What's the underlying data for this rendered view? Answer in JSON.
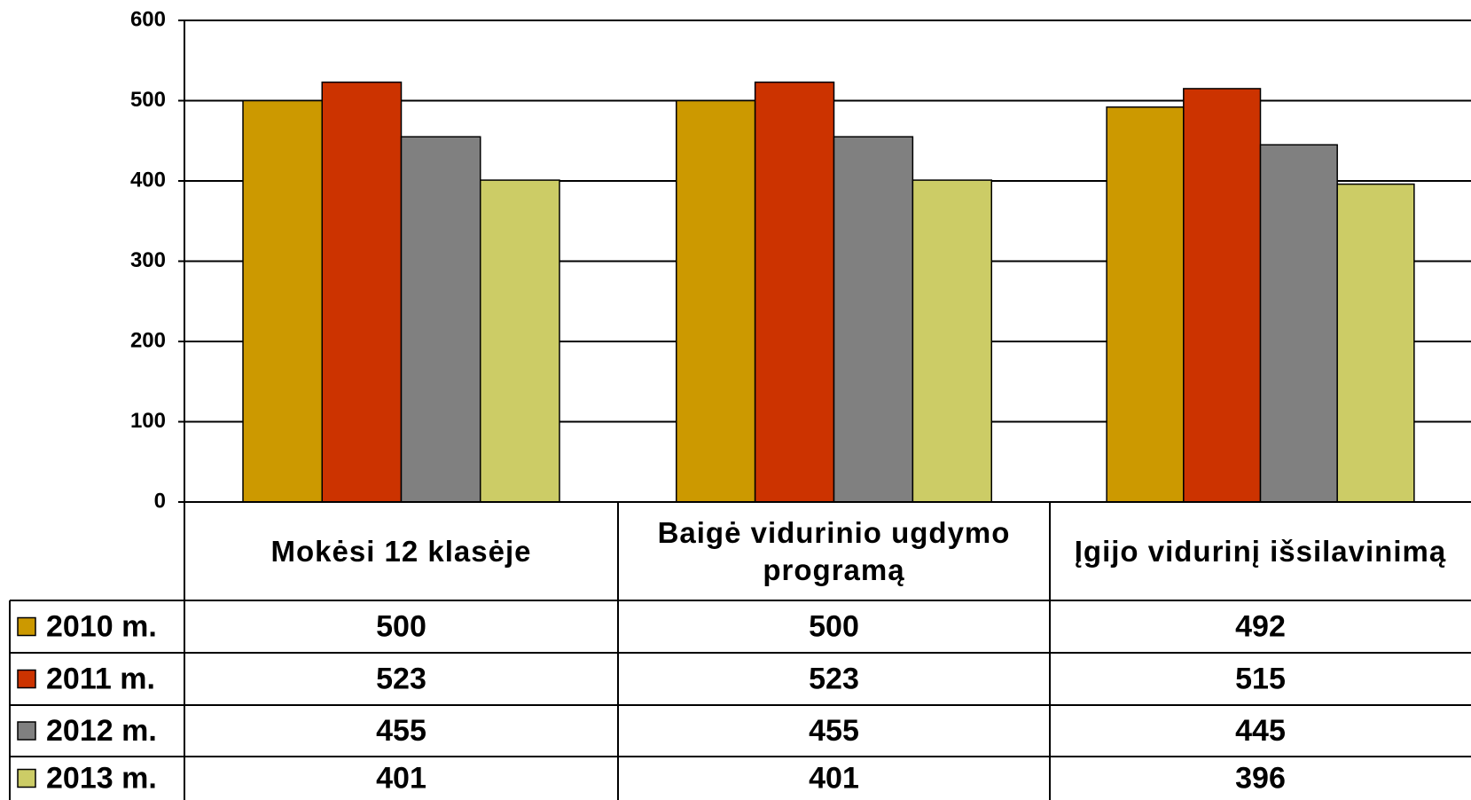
{
  "chart_data": {
    "type": "bar",
    "categories": [
      "Mokėsi 12 klasėje",
      "Baigė vidurinio ugdymo programą",
      "Įgijo vidurinį išsilavinimą"
    ],
    "series": [
      {
        "name": "2010 m.",
        "color": "#cc9900",
        "values": [
          500,
          500,
          492
        ]
      },
      {
        "name": "2011 m.",
        "color": "#cc3300",
        "values": [
          523,
          523,
          515
        ]
      },
      {
        "name": "2012 m.",
        "color": "#808080",
        "values": [
          455,
          455,
          445
        ]
      },
      {
        "name": "2013 m.",
        "color": "#cccc66",
        "values": [
          401,
          401,
          396
        ]
      }
    ],
    "ylim": [
      0,
      600
    ],
    "yticks": [
      0,
      100,
      200,
      300,
      400,
      500,
      600
    ],
    "grid": true
  }
}
